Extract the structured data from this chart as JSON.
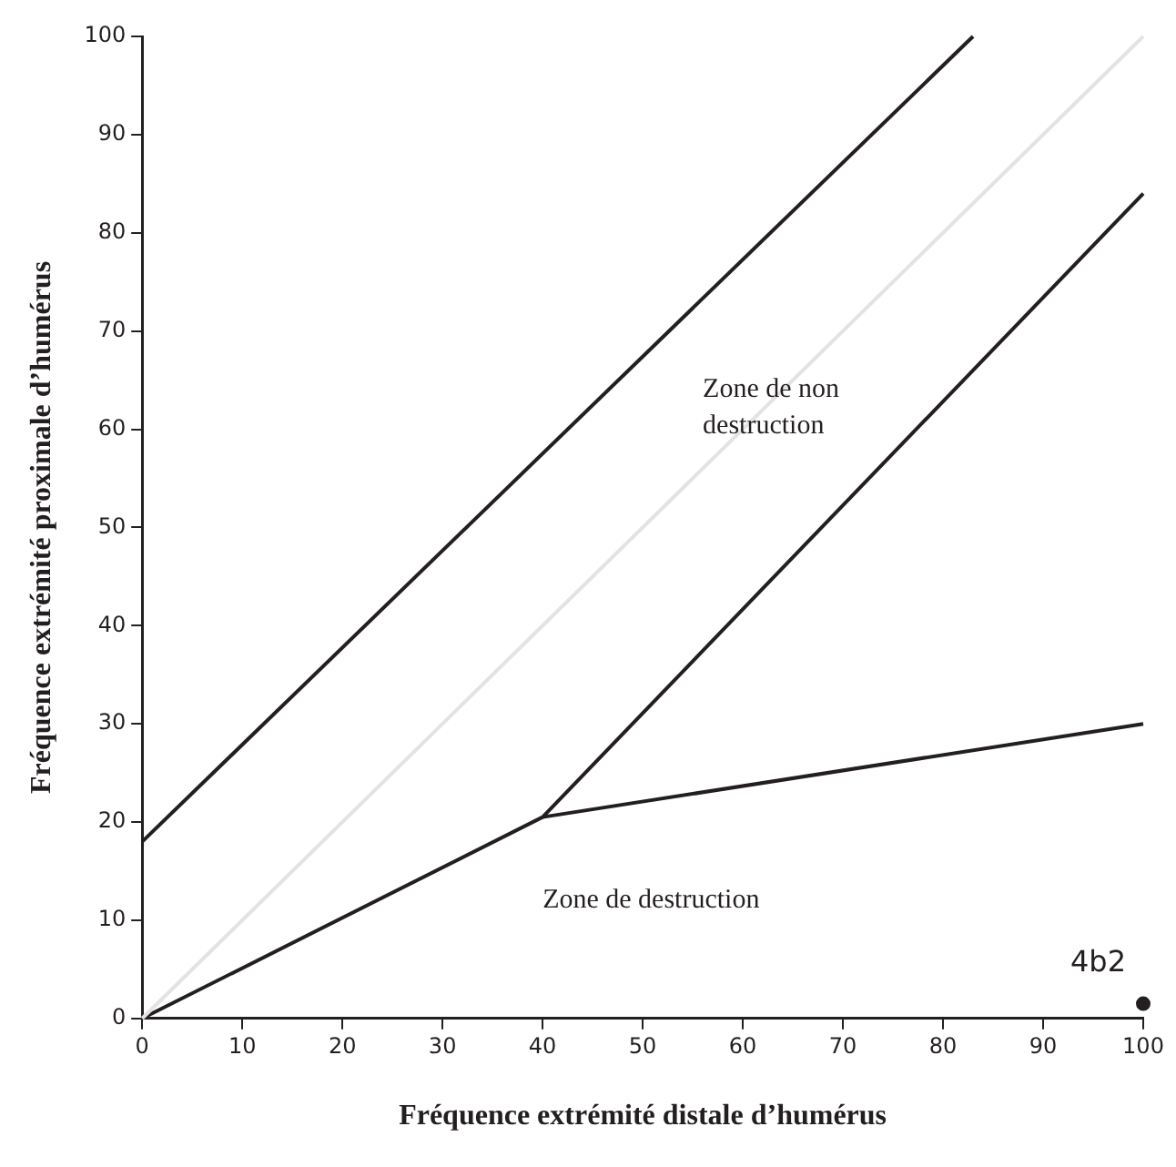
{
  "chart_data": {
    "type": "line",
    "xlabel": "Fréquence extrémité distale d’humérus",
    "ylabel": "Fréquence extrémité proximale d’humérus",
    "xlim": [
      0,
      100
    ],
    "ylim": [
      0,
      100
    ],
    "xticks": [
      0,
      10,
      20,
      30,
      40,
      50,
      60,
      70,
      80,
      90,
      100
    ],
    "yticks": [
      0,
      10,
      20,
      30,
      40,
      50,
      60,
      70,
      80,
      90,
      100
    ],
    "grid": false,
    "legend": false,
    "series": [
      {
        "marker": "none",
        "color": "#231f20",
        "x": [
          0,
          83
        ],
        "values": [
          18,
          100
        ]
      },
      {
        "marker": "none",
        "color": "#e3e3e3",
        "x": [
          0,
          100
        ],
        "values": [
          0,
          100
        ]
      },
      {
        "marker": "none",
        "color": "#231f20",
        "x": [
          0,
          40,
          100
        ],
        "values": [
          0,
          20.5,
          84
        ]
      },
      {
        "marker": "none",
        "color": "#231f20",
        "x": [
          40,
          100
        ],
        "values": [
          20.5,
          30
        ]
      },
      {
        "type": "scatter",
        "marker": "circle",
        "color": "#231f20",
        "x": [
          100
        ],
        "values": [
          1.5
        ]
      }
    ],
    "annotations": [
      "Zone de non destruction",
      "Zone de destruction",
      {
        "text": "4b2",
        "x": 100,
        "y": 1.5
      }
    ]
  }
}
